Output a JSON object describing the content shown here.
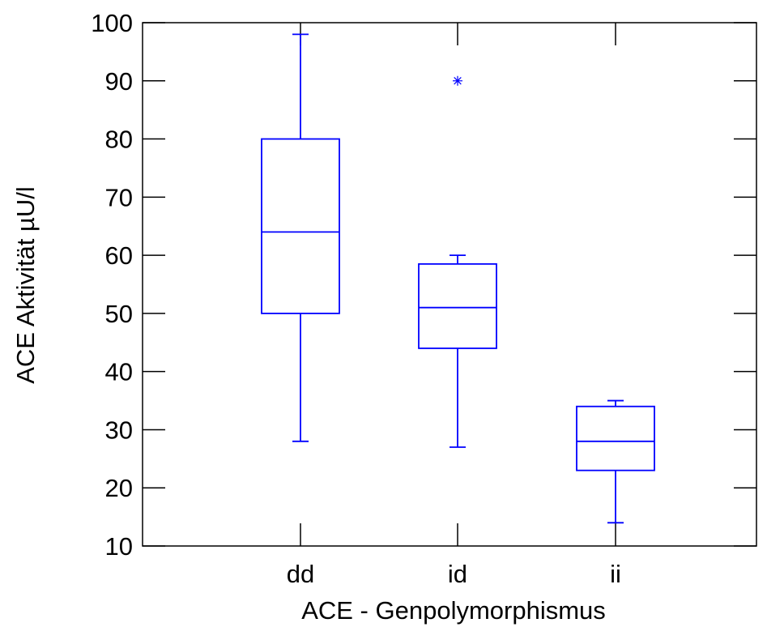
{
  "chart_data": {
    "type": "box",
    "xlabel": "ACE - Genpolymorphismus",
    "ylabel": "ACE Aktivität µU/l",
    "ylim": [
      10,
      100
    ],
    "yticks": [
      10,
      20,
      30,
      40,
      50,
      60,
      70,
      80,
      90,
      100
    ],
    "grid": false,
    "colors": {
      "box": "#0000ff",
      "axis": "#000000",
      "background": "#ffffff"
    },
    "categories": [
      "dd",
      "id",
      "ii"
    ],
    "boxes": [
      {
        "category": "dd",
        "whisker_low": 28,
        "q1": 50,
        "median": 64,
        "q3": 80,
        "whisker_high": 98,
        "outliers": []
      },
      {
        "category": "id",
        "whisker_low": 27,
        "q1": 44,
        "median": 51,
        "q3": 58.5,
        "whisker_high": 60,
        "outliers": [
          90
        ]
      },
      {
        "category": "ii",
        "whisker_low": 14,
        "q1": 23,
        "median": 28,
        "q3": 34,
        "whisker_high": 35,
        "outliers": []
      }
    ]
  }
}
